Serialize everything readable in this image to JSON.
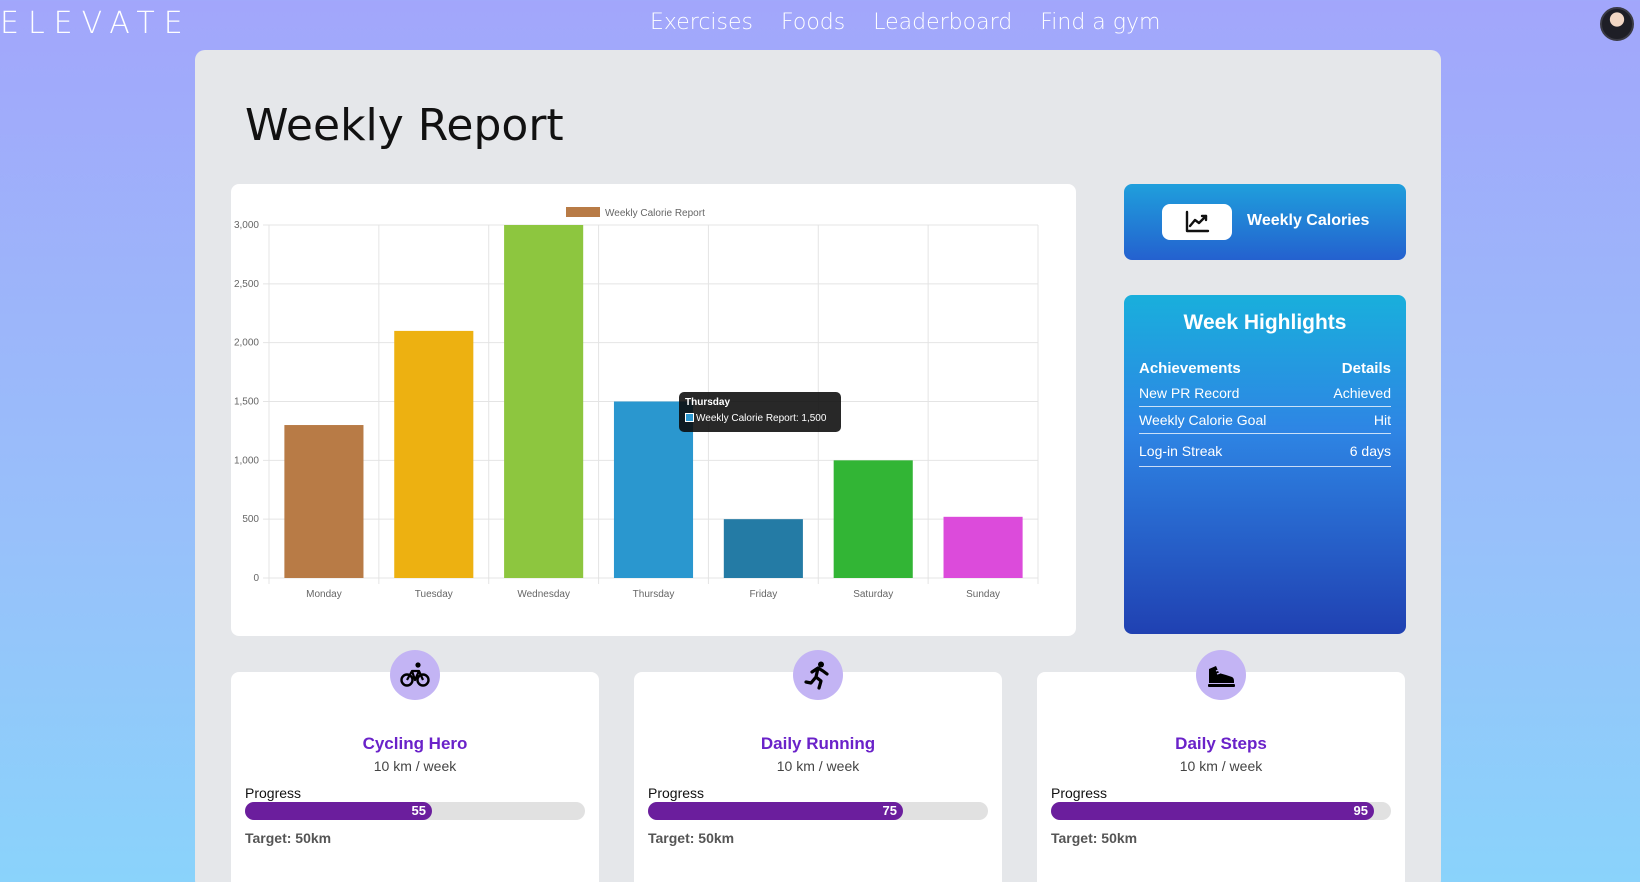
{
  "brand": {
    "logo": "ELEVATE"
  },
  "nav": {
    "items": [
      "Exercises",
      "Foods",
      "Leaderboard",
      "Find a gym"
    ]
  },
  "page": {
    "title": "Weekly Report"
  },
  "chart_data": {
    "type": "bar",
    "legend": "Weekly Calorie Report",
    "categories": [
      "Monday",
      "Tuesday",
      "Wednesday",
      "Thursday",
      "Friday",
      "Saturday",
      "Sunday"
    ],
    "values": [
      1300,
      2100,
      3000,
      1500,
      500,
      1000,
      520
    ],
    "colors": [
      "#b87b46",
      "#edb111",
      "#8dc63f",
      "#2a97cf",
      "#247ba5",
      "#32b535",
      "#dc4bdb"
    ],
    "ylim": [
      0,
      3000
    ],
    "yticks": [
      0,
      500,
      1000,
      1500,
      2000,
      2500,
      3000
    ],
    "ytick_labels": [
      "0",
      "500",
      "1,000",
      "1,500",
      "2,000",
      "2,500",
      "3,000"
    ],
    "tooltip": {
      "title": "Thursday",
      "text": "Weekly Calorie Report: 1,500"
    }
  },
  "calories_button": {
    "label": "Weekly Calories",
    "icon": "line-chart-icon"
  },
  "highlights": {
    "title": "Week Highlights",
    "headers": [
      "Achievements",
      "Details"
    ],
    "rows": [
      {
        "achievement": "New PR Record",
        "detail": "Achieved"
      },
      {
        "achievement": "Weekly Calorie Goal",
        "detail": "Hit"
      },
      {
        "achievement": "Log-in Streak",
        "detail": "6 days"
      }
    ]
  },
  "activities": [
    {
      "icon": "bicycle-icon",
      "title": "Cycling Hero",
      "subtitle": "10 km / week",
      "progress_label": "Progress",
      "progress": 55,
      "progress_text": "55",
      "target": "Target: 50km"
    },
    {
      "icon": "running-icon",
      "title": "Daily Running",
      "subtitle": "10 km / week",
      "progress_label": "Progress",
      "progress": 75,
      "progress_text": "75",
      "target": "Target: 50km"
    },
    {
      "icon": "sneaker-icon",
      "title": "Daily Steps",
      "subtitle": "10 km / week",
      "progress_label": "Progress",
      "progress": 95,
      "progress_text": "95",
      "target": "Target: 50km"
    }
  ]
}
